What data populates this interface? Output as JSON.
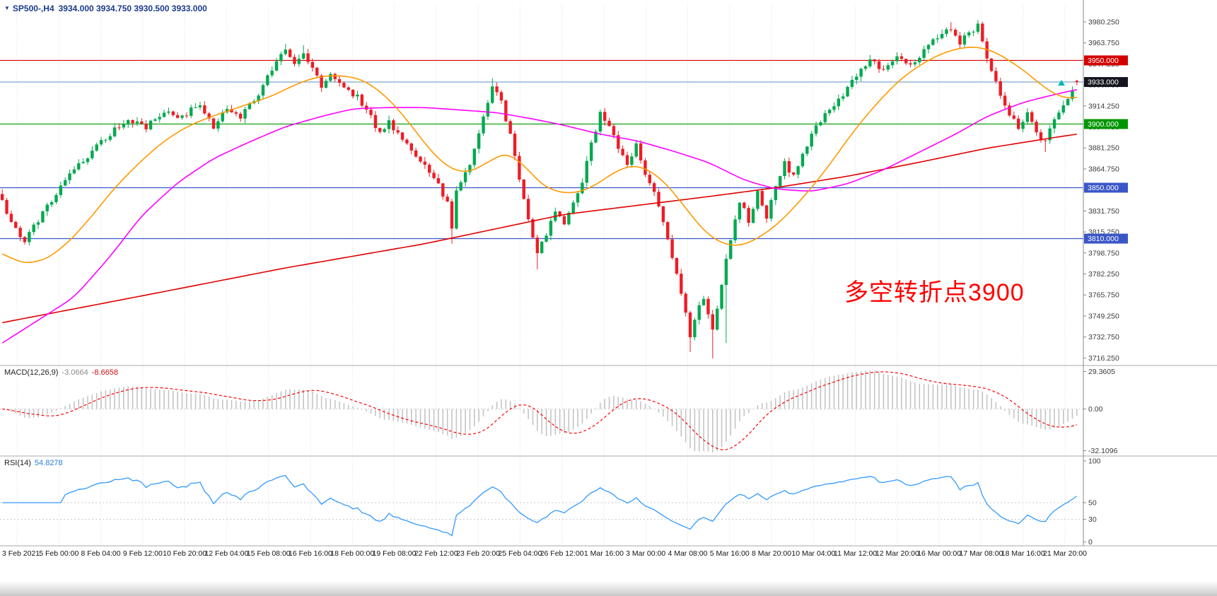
{
  "header": {
    "collapse_icon": "▼",
    "symbol": "SP500-,H4",
    "ohlc": "3934.000 3934.750 3930.500 3933.000"
  },
  "annotation": {
    "text": "多空转折点3900",
    "color": "#ff0000"
  },
  "indicators": {
    "macd": {
      "name": "MACD(12,26,9)",
      "value1": "-3.0664",
      "value2": "-8.6658",
      "axis_ticks": [
        "29.3605",
        "0.00",
        "-32.1096"
      ]
    },
    "rsi": {
      "name": "RSI(14)",
      "value": "54.8278",
      "axis_ticks": [
        "100",
        "50",
        "30",
        "0"
      ],
      "levels": [
        50,
        30
      ]
    }
  },
  "levels": [
    {
      "price": 3950.0,
      "label": "3950.000",
      "line_color": "#d40000",
      "tag_bg": "#d40000"
    },
    {
      "price": 3933.0,
      "label": "3933.000",
      "line_color": "#7ca6cf",
      "tag_bg": "#14141e"
    },
    {
      "price": 3900.0,
      "label": "3900.000",
      "line_color": "#009600",
      "tag_bg": "#009600"
    },
    {
      "price": 3850.0,
      "label": "3850.000",
      "line_color": "#3a57c8",
      "tag_bg": "#3a57c8"
    },
    {
      "price": 3810.0,
      "label": "3810.000",
      "line_color": "#3a57c8",
      "tag_bg": "#3a57c8"
    }
  ],
  "price_axis": {
    "min": 3712.0,
    "max": 3994.1,
    "ticks": [
      "3980.250",
      "3963.750",
      "3947.250",
      "3930.750",
      "3914.250",
      "3897.750",
      "3881.250",
      "3864.750",
      "3848.250",
      "3831.750",
      "3815.250",
      "3798.750",
      "3782.250",
      "3765.750",
      "3749.250",
      "3732.750",
      "3716.250"
    ]
  },
  "time_axis": {
    "labels": [
      "3 Feb 2021",
      "5 Feb 00:00",
      "8 Feb 04:00",
      "9 Feb 12:00",
      "10 Feb 20:00",
      "12 Feb 04:00",
      "15 Feb 08:00",
      "16 Feb 16:00",
      "18 Feb 00:00",
      "19 Feb 08:00",
      "22 Feb 12:00",
      "23 Feb 20:00",
      "25 Feb 04:00",
      "26 Feb 12:00",
      "1 Mar 16:00",
      "3 Mar 00:00",
      "4 Mar 08:00",
      "5 Mar 16:00",
      "8 Mar 20:00",
      "10 Mar 04:00",
      "11 Mar 12:00",
      "12 Mar 20:00",
      "16 Mar 00:00",
      "17 Mar 08:00",
      "18 Mar 16:00",
      "21 Mar 20:00"
    ]
  },
  "colors": {
    "up": "#00a94f",
    "down": "#ee1c25",
    "ma_fast": "#ff9900",
    "ma_mid": "#ff00ff",
    "ma_slow": "#e00000",
    "macd_hist": "#c4c4c4",
    "macd_signal": "#ff0000",
    "rsi_line": "#3399ff",
    "grid": "#e0e0e0",
    "axis_text": "#3c3c3c",
    "separator": "#a8a8a8",
    "current_line": "#7ca6cf",
    "annotation": "#ff0000",
    "buy_arrow": "#00b8b8"
  },
  "chart_data": {
    "type": "candlestick",
    "symbol": "SP500-",
    "timeframe": "H4",
    "title": "SP500-,H4",
    "n_candles": 240,
    "x_range": [
      "3 Feb 2021",
      "21 Mar 20:00"
    ],
    "y_range": [
      3712.0,
      3994.1
    ],
    "last_candle": {
      "o": 3934.0,
      "h": 3934.75,
      "l": 3930.5,
      "c": 3933.0
    },
    "horizontal_levels": [
      3950,
      3933,
      3900,
      3850,
      3810
    ],
    "close_waypoints": [
      [
        0,
        3841
      ],
      [
        2,
        3821
      ],
      [
        5,
        3807
      ],
      [
        9,
        3830
      ],
      [
        13,
        3852
      ],
      [
        18,
        3872
      ],
      [
        23,
        3890
      ],
      [
        28,
        3903
      ],
      [
        32,
        3897
      ],
      [
        36,
        3911
      ],
      [
        40,
        3906
      ],
      [
        44,
        3916
      ],
      [
        47,
        3896
      ],
      [
        50,
        3913
      ],
      [
        53,
        3906
      ],
      [
        56,
        3918
      ],
      [
        59,
        3937
      ],
      [
        61,
        3950
      ],
      [
        63,
        3957
      ],
      [
        65,
        3948
      ],
      [
        67,
        3956
      ],
      [
        69,
        3945
      ],
      [
        71,
        3931
      ],
      [
        73,
        3940
      ],
      [
        76,
        3929
      ],
      [
        79,
        3921
      ],
      [
        82,
        3905
      ],
      [
        84,
        3893
      ],
      [
        86,
        3901
      ],
      [
        89,
        3886
      ],
      [
        92,
        3875
      ],
      [
        95,
        3862
      ],
      [
        97,
        3852
      ],
      [
        99,
        3838
      ],
      [
        100,
        3818
      ],
      [
        101,
        3846
      ],
      [
        103,
        3860
      ],
      [
        104,
        3868
      ],
      [
        107,
        3905
      ],
      [
        109,
        3928
      ],
      [
        111,
        3918
      ],
      [
        113,
        3890
      ],
      [
        115,
        3858
      ],
      [
        117,
        3826
      ],
      [
        119,
        3800
      ],
      [
        121,
        3814
      ],
      [
        123,
        3832
      ],
      [
        125,
        3820
      ],
      [
        127,
        3838
      ],
      [
        129,
        3856
      ],
      [
        131,
        3884
      ],
      [
        133,
        3908
      ],
      [
        135,
        3898
      ],
      [
        137,
        3880
      ],
      [
        139,
        3870
      ],
      [
        141,
        3884
      ],
      [
        143,
        3862
      ],
      [
        145,
        3846
      ],
      [
        147,
        3822
      ],
      [
        149,
        3794
      ],
      [
        151,
        3766
      ],
      [
        153,
        3735
      ],
      [
        154,
        3748
      ],
      [
        156,
        3764
      ],
      [
        158,
        3737
      ],
      [
        160,
        3775
      ],
      [
        162,
        3810
      ],
      [
        164,
        3840
      ],
      [
        166,
        3824
      ],
      [
        168,
        3846
      ],
      [
        170,
        3828
      ],
      [
        172,
        3852
      ],
      [
        174,
        3870
      ],
      [
        176,
        3858
      ],
      [
        178,
        3876
      ],
      [
        181,
        3898
      ],
      [
        184,
        3912
      ],
      [
        187,
        3922
      ],
      [
        190,
        3938
      ],
      [
        193,
        3950
      ],
      [
        196,
        3942
      ],
      [
        199,
        3954
      ],
      [
        202,
        3946
      ],
      [
        205,
        3958
      ],
      [
        208,
        3968
      ],
      [
        211,
        3976
      ],
      [
        213,
        3964
      ],
      [
        215,
        3972
      ],
      [
        217,
        3978
      ],
      [
        219,
        3952
      ],
      [
        221,
        3934
      ],
      [
        223,
        3914
      ],
      [
        226,
        3896
      ],
      [
        228,
        3908
      ],
      [
        230,
        3892
      ],
      [
        232,
        3886
      ],
      [
        234,
        3904
      ],
      [
        236,
        3916
      ],
      [
        238,
        3928
      ],
      [
        239,
        3933
      ]
    ],
    "low_spikes": [
      [
        100,
        3806
      ],
      [
        119,
        3786
      ],
      [
        153,
        3721
      ],
      [
        158,
        3716
      ],
      [
        161,
        3728
      ],
      [
        232,
        3878
      ]
    ],
    "high_spikes": [
      [
        63,
        3963
      ],
      [
        67,
        3962
      ],
      [
        109,
        3936
      ],
      [
        211,
        3980
      ],
      [
        217,
        3981
      ]
    ],
    "overlays": [
      {
        "name": "ma-fast",
        "color": "#ff9900",
        "waypoints": [
          [
            0,
            3798
          ],
          [
            5,
            3790
          ],
          [
            10,
            3794
          ],
          [
            15,
            3808
          ],
          [
            20,
            3828
          ],
          [
            25,
            3850
          ],
          [
            30,
            3868
          ],
          [
            35,
            3884
          ],
          [
            40,
            3896
          ],
          [
            45,
            3904
          ],
          [
            50,
            3910
          ],
          [
            55,
            3916
          ],
          [
            60,
            3922
          ],
          [
            64,
            3929
          ],
          [
            68,
            3935
          ],
          [
            72,
            3938
          ],
          [
            76,
            3938
          ],
          [
            80,
            3935
          ],
          [
            84,
            3926
          ],
          [
            88,
            3912
          ],
          [
            92,
            3894
          ],
          [
            96,
            3876
          ],
          [
            100,
            3864
          ],
          [
            104,
            3862
          ],
          [
            108,
            3870
          ],
          [
            112,
            3878
          ],
          [
            116,
            3868
          ],
          [
            120,
            3852
          ],
          [
            124,
            3846
          ],
          [
            128,
            3846
          ],
          [
            132,
            3852
          ],
          [
            136,
            3862
          ],
          [
            140,
            3868
          ],
          [
            144,
            3864
          ],
          [
            148,
            3852
          ],
          [
            152,
            3834
          ],
          [
            156,
            3816
          ],
          [
            160,
            3806
          ],
          [
            164,
            3804
          ],
          [
            168,
            3810
          ],
          [
            172,
            3820
          ],
          [
            176,
            3834
          ],
          [
            180,
            3850
          ],
          [
            184,
            3868
          ],
          [
            188,
            3888
          ],
          [
            192,
            3906
          ],
          [
            196,
            3922
          ],
          [
            200,
            3936
          ],
          [
            204,
            3946
          ],
          [
            208,
            3954
          ],
          [
            212,
            3959
          ],
          [
            216,
            3961
          ],
          [
            220,
            3958
          ],
          [
            224,
            3950
          ],
          [
            228,
            3940
          ],
          [
            232,
            3928
          ],
          [
            236,
            3920
          ],
          [
            239,
            3921
          ]
        ]
      },
      {
        "name": "ma-mid",
        "color": "#ff00ff",
        "waypoints": [
          [
            0,
            3728
          ],
          [
            8,
            3746
          ],
          [
            16,
            3764
          ],
          [
            24,
            3796
          ],
          [
            31,
            3828
          ],
          [
            39,
            3854
          ],
          [
            47,
            3873
          ],
          [
            55,
            3886
          ],
          [
            63,
            3898
          ],
          [
            71,
            3906
          ],
          [
            78,
            3912
          ],
          [
            86,
            3913
          ],
          [
            94,
            3913
          ],
          [
            102,
            3911
          ],
          [
            110,
            3909
          ],
          [
            118,
            3904
          ],
          [
            125,
            3899
          ],
          [
            133,
            3892
          ],
          [
            141,
            3887
          ],
          [
            149,
            3879
          ],
          [
            157,
            3870
          ],
          [
            165,
            3856
          ],
          [
            172,
            3849
          ],
          [
            180,
            3847
          ],
          [
            188,
            3853
          ],
          [
            196,
            3864
          ],
          [
            204,
            3878
          ],
          [
            212,
            3892
          ],
          [
            219,
            3906
          ],
          [
            227,
            3917
          ],
          [
            235,
            3924
          ],
          [
            239,
            3927
          ]
        ]
      },
      {
        "name": "ma-slow",
        "color": "#e00000",
        "waypoints": [
          [
            0,
            3744
          ],
          [
            31,
            3765
          ],
          [
            63,
            3787
          ],
          [
            94,
            3806
          ],
          [
            125,
            3829
          ],
          [
            157,
            3843
          ],
          [
            172,
            3850
          ],
          [
            188,
            3859
          ],
          [
            204,
            3870
          ],
          [
            219,
            3881
          ],
          [
            235,
            3890
          ],
          [
            239,
            3892
          ]
        ]
      }
    ],
    "sub_charts": [
      {
        "type": "macd-histogram",
        "label": "MACD(12,26,9)",
        "current_values": [
          -3.0664,
          -8.6658
        ],
        "axis_ticks": [
          29.3605,
          0.0,
          -32.1096
        ]
      },
      {
        "type": "line",
        "label": "RSI(14)",
        "current_value": 54.8278,
        "axis_ticks": [
          100,
          50,
          30,
          0
        ]
      }
    ]
  }
}
